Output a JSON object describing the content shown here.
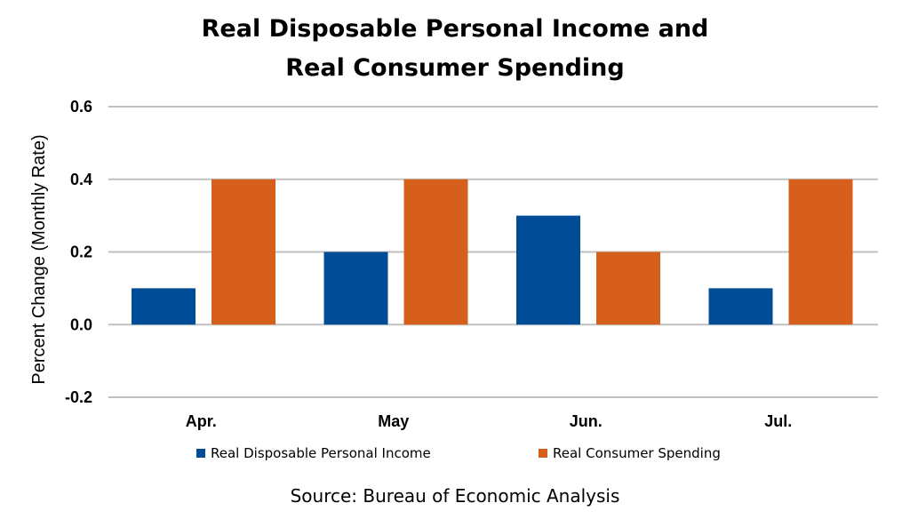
{
  "chart_data": {
    "type": "bar",
    "title_lines": [
      "Real Disposable Personal Income and",
      "Real Consumer Spending"
    ],
    "categories": [
      "Apr.",
      "May",
      "Jun.",
      "Jul."
    ],
    "series": [
      {
        "name": "Real Disposable Personal Income",
        "color": "#004C97",
        "values": [
          0.1,
          0.2,
          0.3,
          0.1
        ]
      },
      {
        "name": "Real Consumer Spending",
        "color": "#D65F1C",
        "values": [
          0.4,
          0.4,
          0.2,
          0.4
        ]
      }
    ],
    "xlabel": "",
    "ylabel": "Percent Change (Monthly Rate)",
    "ylim": [
      -0.2,
      0.6
    ],
    "yticks": [
      0.6,
      0.4,
      0.2,
      0.0,
      -0.2
    ],
    "ytick_labels": [
      "0.6",
      "0.4",
      "0.2",
      "0.0",
      "-0.2"
    ],
    "grid": true,
    "gridline_color": "#C0C0C0",
    "legend_position": "bottom",
    "source_text": "Source:  Bureau of Economic Analysis"
  }
}
